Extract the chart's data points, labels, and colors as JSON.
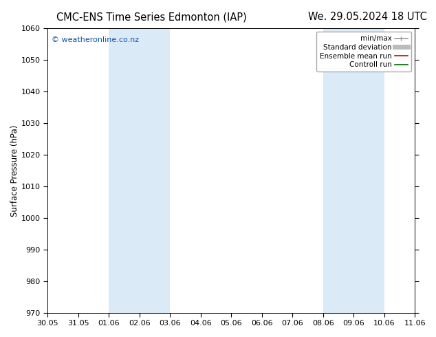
{
  "title_left": "CMC-ENS Time Series Edmonton (IAP)",
  "title_right": "We. 29.05.2024 18 UTC",
  "ylabel": "Surface Pressure (hPa)",
  "ylim": [
    970,
    1060
  ],
  "yticks": [
    970,
    980,
    990,
    1000,
    1010,
    1020,
    1030,
    1040,
    1050,
    1060
  ],
  "xtick_labels": [
    "30.05",
    "31.05",
    "01.06",
    "02.06",
    "03.06",
    "04.06",
    "05.06",
    "06.06",
    "07.06",
    "08.06",
    "09.06",
    "10.06",
    "11.06"
  ],
  "xtick_positions": [
    0,
    1,
    2,
    3,
    4,
    5,
    6,
    7,
    8,
    9,
    10,
    11,
    12
  ],
  "xlim": [
    0,
    12
  ],
  "shaded_bands": [
    {
      "xmin": 2,
      "xmax": 4,
      "color": "#daeaf7"
    },
    {
      "xmin": 9,
      "xmax": 11,
      "color": "#daeaf7"
    }
  ],
  "background_color": "#ffffff",
  "plot_bg_color": "#ffffff",
  "watermark_text": "© weatheronline.co.nz",
  "watermark_color": "#1155aa",
  "legend_entries": [
    {
      "label": "min/max",
      "color": "#999999",
      "lw": 1.2
    },
    {
      "label": "Standard deviation",
      "color": "#bbbbbb",
      "lw": 5
    },
    {
      "label": "Ensemble mean run",
      "color": "#cc0000",
      "lw": 1.2
    },
    {
      "label": "Controll run",
      "color": "#006600",
      "lw": 1.2
    }
  ],
  "title_fontsize": 10.5,
  "tick_fontsize": 8,
  "ylabel_fontsize": 8.5,
  "watermark_fontsize": 8,
  "legend_fontsize": 7.5
}
